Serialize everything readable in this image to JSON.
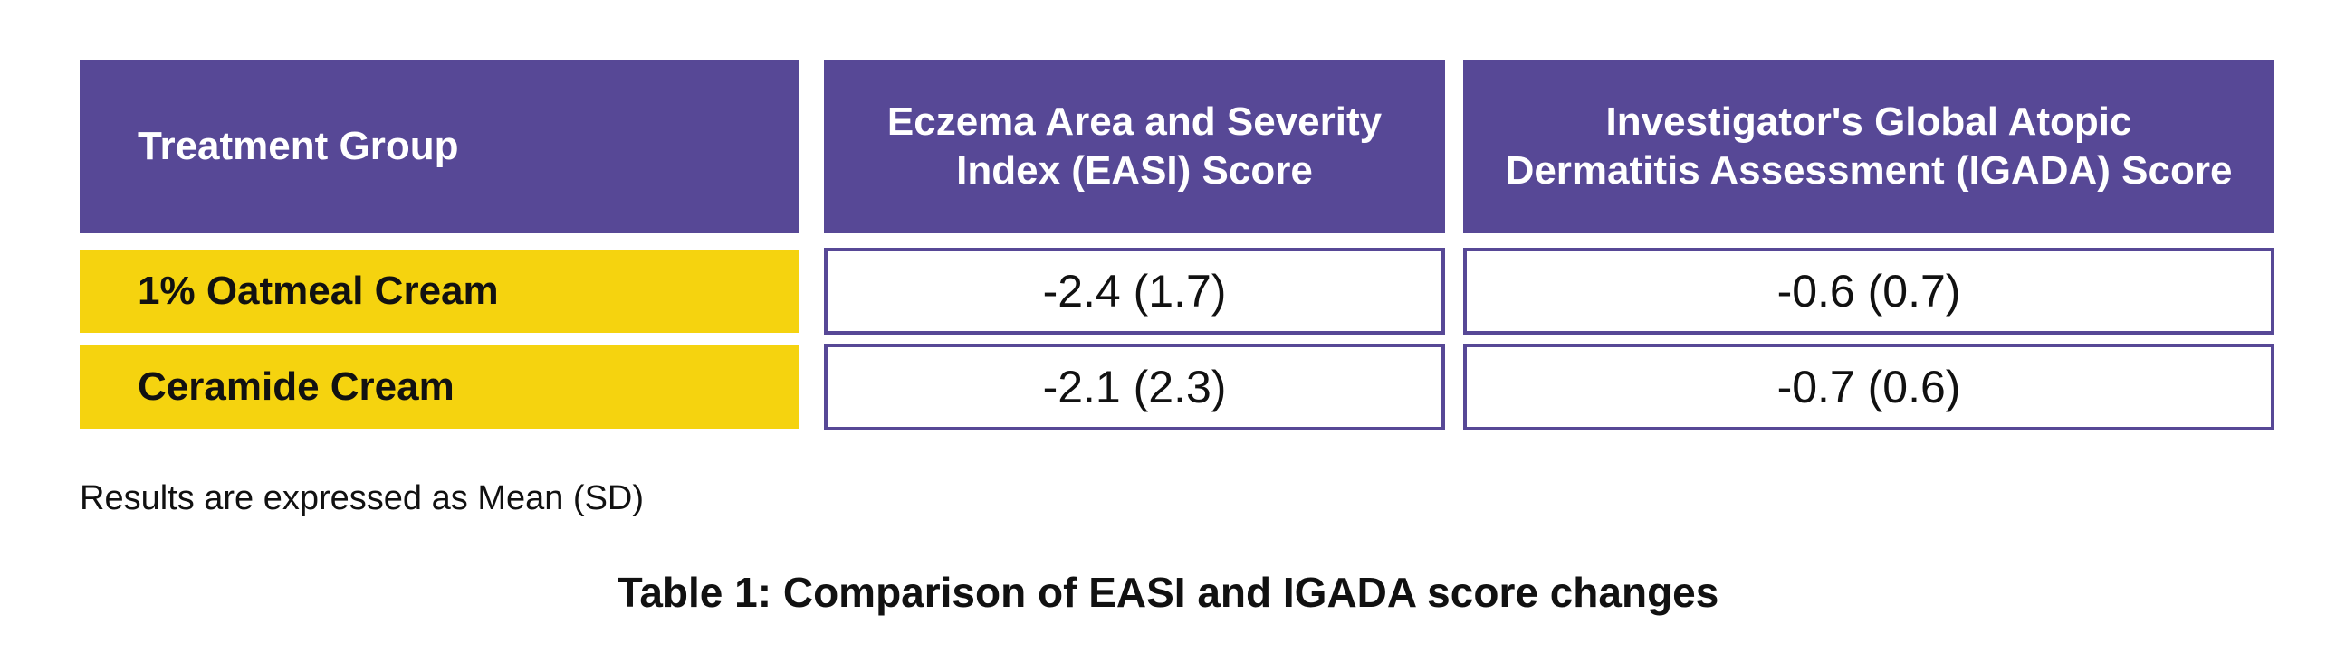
{
  "table": {
    "headers": [
      "Treatment Group",
      "Eczema Area and Severity Index (EASI) Score",
      "Investigator's Global Atopic Dermatitis Assessment (IGADA) Score"
    ],
    "header_lines": {
      "easi": [
        "Eczema Area and Severity",
        "Index (EASI) Score"
      ],
      "igada": [
        "Investigator's Global Atopic",
        "Dermatitis Assessment (IGADA) Score"
      ]
    },
    "rows": [
      {
        "group": "1% Oatmeal Cream",
        "easi": "-2.4 (1.7)",
        "igada": "-0.6 (0.7)"
      },
      {
        "group": "Ceramide Cream",
        "easi": "-2.1 (2.3)",
        "igada": "-0.7 (0.6)"
      }
    ]
  },
  "note": "Results are expressed as Mean (SD)",
  "caption": "Table 1: Comparison of EASI and IGADA score changes",
  "colors": {
    "header_bg": "#574896",
    "group_bg": "#f5d30f",
    "value_border": "#574896"
  }
}
